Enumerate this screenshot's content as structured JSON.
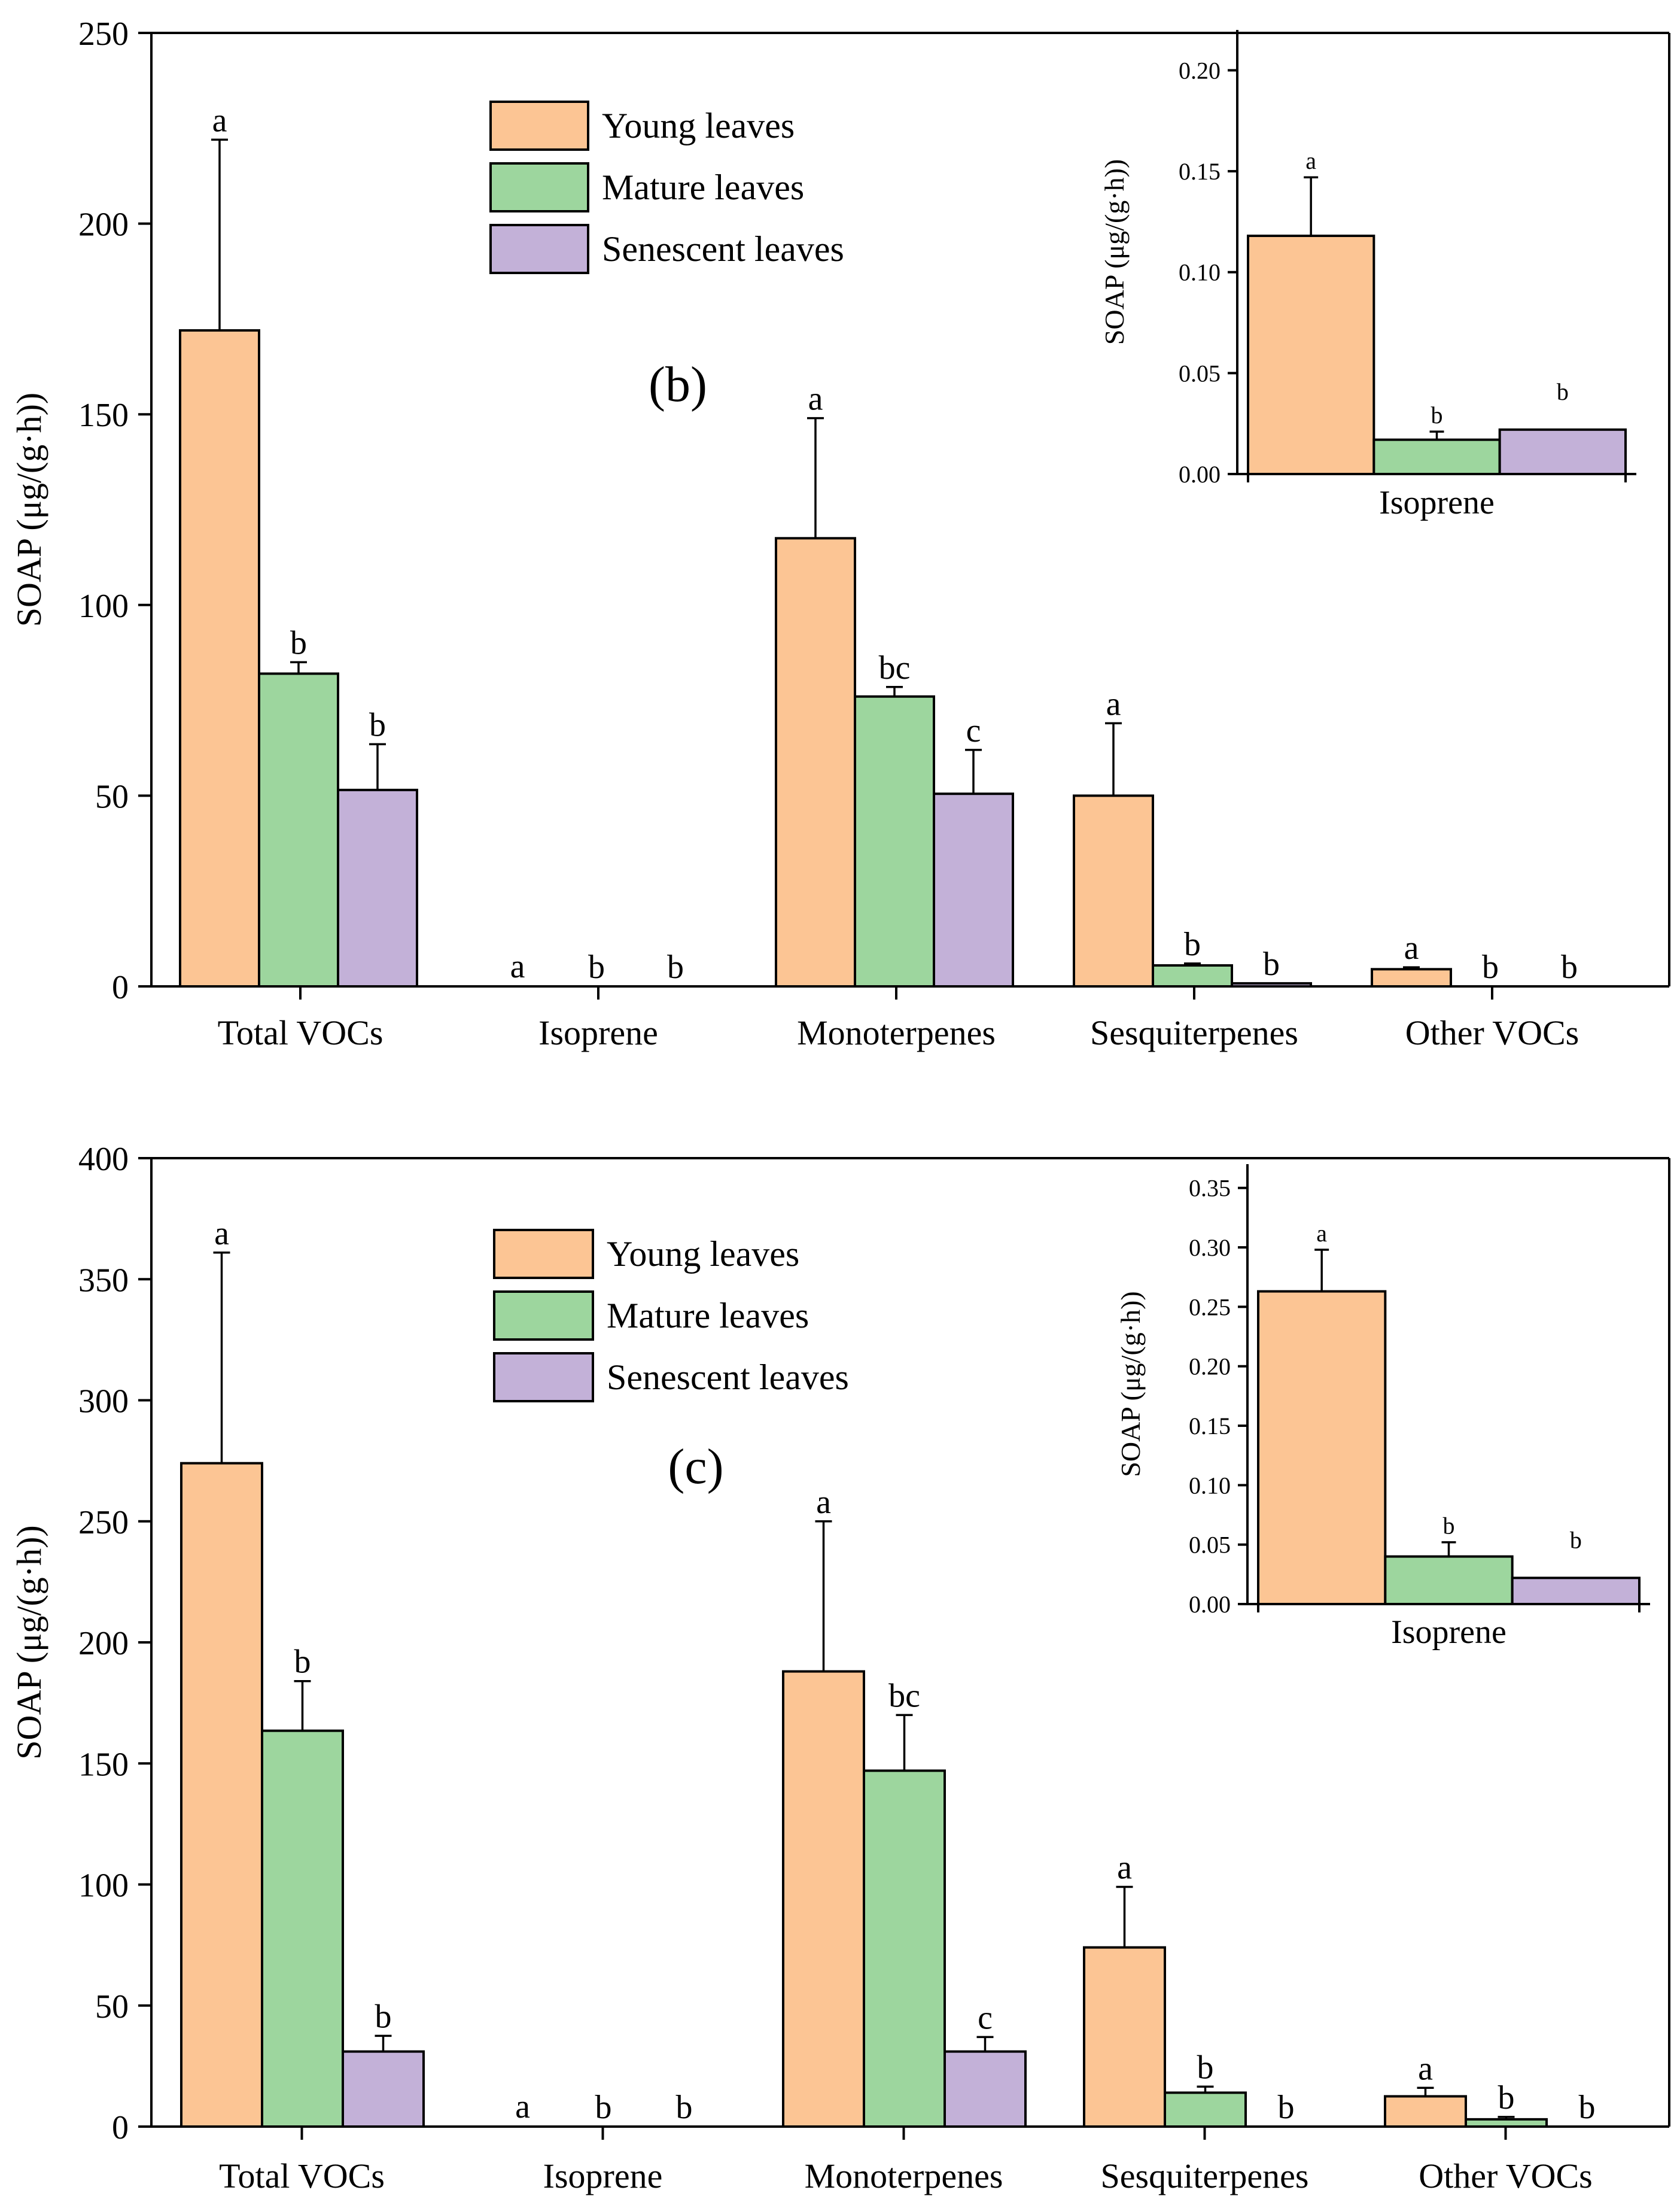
{
  "colors": {
    "young": "#FCC594",
    "mature": "#9DD69E",
    "senescent": "#C3B1D8"
  },
  "chart_data": [
    {
      "id": "b",
      "type": "bar",
      "panel_label": "(b)",
      "ylabel": "SOAP (μg/(g·h))",
      "ylim": [
        0,
        250
      ],
      "yticks": [
        0,
        50,
        100,
        150,
        200,
        250
      ],
      "legend_position": "top-center",
      "categories": [
        "Total VOCs",
        "Isoprene",
        "Monoterpenes",
        "Sesquiterpenes",
        "Other VOCs"
      ],
      "series": [
        {
          "name": "Young leaves",
          "color_key": "young",
          "values": [
            172,
            0.118,
            117.5,
            50,
            4.5
          ],
          "errors": [
            50,
            0.03,
            31.5,
            19,
            0.5
          ],
          "letters": [
            "a",
            "a",
            "a",
            "a",
            "a"
          ]
        },
        {
          "name": "Mature leaves",
          "color_key": "mature",
          "values": [
            82,
            0.017,
            76,
            5.5,
            0
          ],
          "errors": [
            3,
            0.004,
            2.5,
            0.5,
            0
          ],
          "letters": [
            "b",
            "b",
            "bc",
            "b",
            "b"
          ]
        },
        {
          "name": "Senescent leaves",
          "color_key": "senescent",
          "values": [
            51.5,
            0.022,
            50.5,
            0.8,
            0
          ],
          "errors": [
            12,
            0,
            11.5,
            0.3,
            0
          ],
          "letters": [
            "b",
            "b",
            "c",
            "b",
            "b"
          ]
        }
      ],
      "inset": {
        "category": "Isoprene",
        "ylabel": "SOAP (μg/(g·h))",
        "ylim": [
          0,
          0.22
        ],
        "yticks": [
          "0.00",
          "0.05",
          "0.10",
          "0.15",
          "0.20"
        ],
        "values": [
          0.118,
          0.017,
          0.022
        ],
        "errors": [
          0.029,
          0.004,
          0
        ],
        "letters": [
          "a",
          "b",
          "b"
        ]
      }
    },
    {
      "id": "c",
      "type": "bar",
      "panel_label": "(c)",
      "ylabel": "SOAP (μg/(g·h))",
      "ylim": [
        0,
        400
      ],
      "yticks": [
        0,
        50,
        100,
        150,
        200,
        250,
        300,
        350,
        400
      ],
      "legend_position": "top-center",
      "categories": [
        "Total VOCs",
        "Isoprene",
        "Monoterpenes",
        "Sesquiterpenes",
        "Other VOCs"
      ],
      "series": [
        {
          "name": "Young leaves",
          "color_key": "young",
          "values": [
            274,
            0.263,
            188,
            74,
            12.5
          ],
          "errors": [
            87,
            0.035,
            62,
            25,
            3.5
          ],
          "letters": [
            "a",
            "a",
            "a",
            "a",
            "a"
          ]
        },
        {
          "name": "Mature leaves",
          "color_key": "mature",
          "values": [
            163.5,
            0.04,
            147,
            14,
            3
          ],
          "errors": [
            20.5,
            0.012,
            23,
            2.5,
            1
          ],
          "letters": [
            "b",
            "b",
            "bc",
            "b",
            "b"
          ]
        },
        {
          "name": "Senescent leaves",
          "color_key": "senescent",
          "values": [
            31,
            0.022,
            31,
            0,
            0
          ],
          "errors": [
            6.5,
            0,
            6,
            0,
            0
          ],
          "letters": [
            "b",
            "b",
            "c",
            "b",
            "b"
          ]
        }
      ],
      "inset": {
        "category": "Isoprene",
        "ylabel": "SOAP (μg/(g·h))",
        "ylim": [
          0,
          0.37
        ],
        "yticks": [
          "0.00",
          "0.05",
          "0.10",
          "0.15",
          "0.20",
          "0.25",
          "0.30",
          "0.35"
        ],
        "values": [
          0.263,
          0.04,
          0.022
        ],
        "errors": [
          0.035,
          0.012,
          0
        ],
        "letters": [
          "a",
          "b",
          "b"
        ]
      }
    }
  ]
}
